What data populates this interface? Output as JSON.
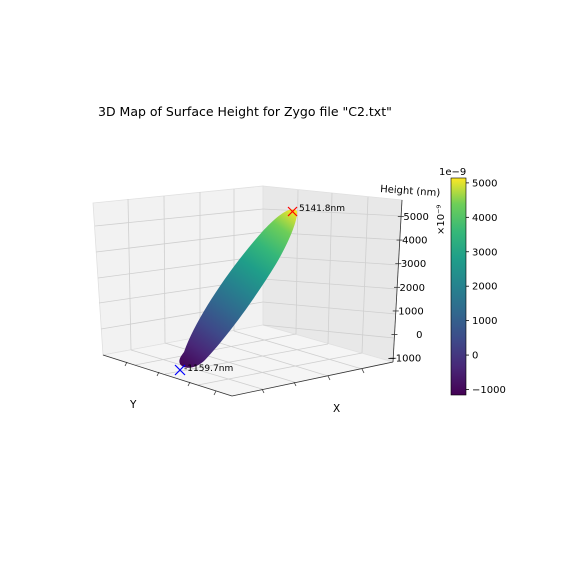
{
  "chart_data": {
    "type": "surface3d",
    "title": "3D Map of Surface Height for Zygo file \"C2.txt\"",
    "xlabel": "X",
    "ylabel": "Y",
    "zlabel": "Height (nm)",
    "zlim": [
      -1159.7,
      5141.8
    ],
    "z_ticks": [
      -1000,
      0,
      1000,
      2000,
      3000,
      4000,
      5000
    ],
    "z_tick_labels": [
      "−1000",
      "0",
      "1000",
      "2000",
      "3000",
      "4000",
      "5000"
    ],
    "colormap": "viridis",
    "max_point": {
      "value": 5141.8,
      "label": "5141.8nm",
      "marker": "x",
      "color": "#ff0000"
    },
    "min_point": {
      "value": -1159.7,
      "label": "-1159.7nm",
      "marker": "x",
      "color": "#0000ff"
    },
    "colorbar": {
      "range": [
        -1159.7,
        5141.8
      ],
      "ticks": [
        -1000,
        0,
        1000,
        2000,
        3000,
        4000,
        5000
      ],
      "tick_labels": [
        "−1000",
        "0",
        "1000",
        "2000",
        "3000",
        "4000",
        "5000"
      ],
      "offset_text": "1e−9",
      "label": "×10⁻⁹"
    },
    "grid": true
  }
}
